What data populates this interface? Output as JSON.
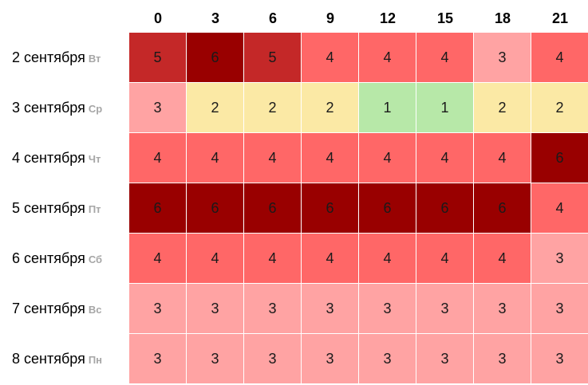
{
  "chart_data": {
    "type": "heatmap",
    "columns": [
      "0",
      "3",
      "6",
      "9",
      "12",
      "15",
      "18",
      "21"
    ],
    "rows": [
      {
        "date": "2 сентября",
        "weekday": "Вт",
        "values": [
          5,
          6,
          5,
          4,
          4,
          4,
          3,
          4
        ]
      },
      {
        "date": "3 сентября",
        "weekday": "Ср",
        "values": [
          3,
          2,
          2,
          2,
          1,
          1,
          2,
          2
        ]
      },
      {
        "date": "4 сентября",
        "weekday": "Чт",
        "values": [
          4,
          4,
          4,
          4,
          4,
          4,
          4,
          6
        ]
      },
      {
        "date": "5 сентября",
        "weekday": "Пт",
        "values": [
          6,
          6,
          6,
          6,
          6,
          6,
          6,
          4
        ]
      },
      {
        "date": "6 сентября",
        "weekday": "Сб",
        "values": [
          4,
          4,
          4,
          4,
          4,
          4,
          4,
          3
        ]
      },
      {
        "date": "7 сентября",
        "weekday": "Вс",
        "values": [
          3,
          3,
          3,
          3,
          3,
          3,
          3,
          3
        ]
      },
      {
        "date": "8 сентября",
        "weekday": "Пн",
        "values": [
          3,
          3,
          3,
          3,
          3,
          3,
          3,
          3
        ]
      }
    ],
    "color_scale": {
      "1": "#b7e8a8",
      "2": "#fbe9a5",
      "3": "#ffa3a3",
      "4": "#ff6767",
      "5": "#c42828",
      "6": "#990000"
    }
  }
}
